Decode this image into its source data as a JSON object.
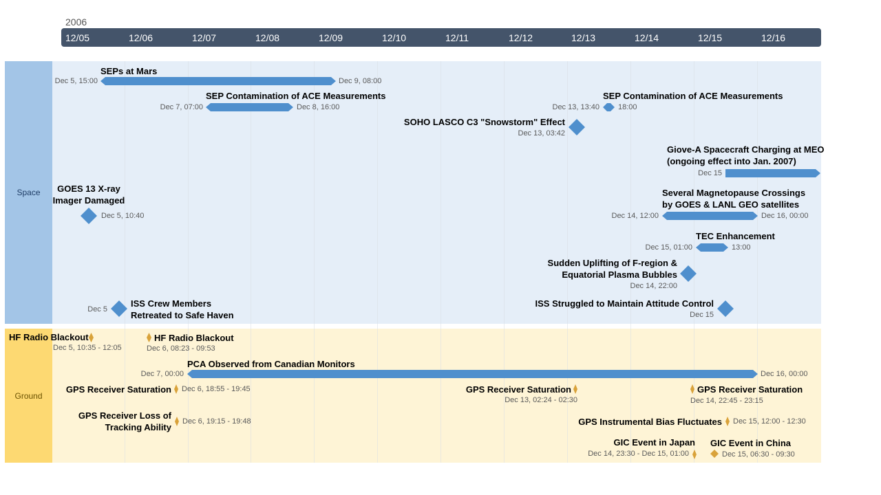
{
  "year": "2006",
  "ticks": [
    "12/05",
    "12/06",
    "12/07",
    "12/08",
    "12/09",
    "12/10",
    "12/11",
    "12/12",
    "12/13",
    "12/14",
    "12/15",
    "12/16"
  ],
  "bands": {
    "space": "Space",
    "ground": "Ground"
  },
  "colors": {
    "axis": "#44546a",
    "space_label": "#a3c5e7",
    "space_bg": "#e5eef8",
    "ground_label": "#fdd972",
    "ground_bg": "#fef4d6",
    "bar": "#4f8fcd",
    "diamond_space": "#4f8fcd",
    "diamond_ground": "#d9a23a"
  },
  "space": {
    "sep_mars": {
      "title": "SEPs at Mars",
      "start": "Dec 5, 15:00",
      "end": "Dec 9, 08:00"
    },
    "sep_ace_1": {
      "title": "SEP Contamination of ACE Measurements",
      "start": "Dec 7, 07:00",
      "end": "Dec 8, 16:00"
    },
    "sep_ace_2": {
      "title": "SEP Contamination of ACE Measurements",
      "start": "Dec 13, 13:40",
      "end": "18:00"
    },
    "soho": {
      "title": "SOHO LASCO C3 \"Snowstorm\" Effect",
      "date": "Dec 13, 03:42"
    },
    "giove": {
      "title1": "Giove-A Spacecraft Charging at MEO",
      "title2": "(ongoing effect into Jan. 2007)",
      "start": "Dec 15"
    },
    "goes13": {
      "title1": "GOES 13 X-ray",
      "title2": "Imager Damaged",
      "date": "Dec 5, 10:40"
    },
    "magnetopause": {
      "title1": "Several Magnetopause Crossings",
      "title2": "by GOES & LANL GEO satellites",
      "start": "Dec 14, 12:00",
      "end": "Dec 16, 00:00"
    },
    "tec": {
      "title": "TEC Enhancement",
      "start": "Dec 15, 01:00",
      "end": "13:00"
    },
    "f_region": {
      "title1": "Sudden Uplifting of F-region &",
      "title2": "Equatorial Plasma Bubbles",
      "date": "Dec 14, 22:00"
    },
    "iss_crew": {
      "title1": "ISS Crew Members",
      "title2": "Retreated to Safe Haven",
      "date": "Dec 5"
    },
    "iss_attitude": {
      "title": "ISS Struggled to Maintain Attitude Control",
      "date": "Dec 15"
    }
  },
  "ground": {
    "hf1": {
      "title": "HF Radio Blackout",
      "date": "Dec 5, 10:35 - 12:05"
    },
    "hf2": {
      "title": "HF Radio Blackout",
      "date": "Dec 6, 08:23 - 09:53"
    },
    "pca": {
      "title": "PCA Observed from Canadian Monitors",
      "start": "Dec 7, 00:00",
      "end": "Dec 16, 00:00"
    },
    "gps_sat_1": {
      "title": "GPS Receiver Saturation",
      "date": "Dec 6, 18:55 - 19:45"
    },
    "gps_sat_2": {
      "title": "GPS Receiver Saturation",
      "date": "Dec 13, 02:24 - 02:30"
    },
    "gps_sat_3": {
      "title": "GPS Receiver Saturation",
      "date": "Dec 14, 22:45 - 23:15"
    },
    "gps_loss": {
      "title1": "GPS Receiver Loss of",
      "title2": "Tracking Ability",
      "date": "Dec 6, 19:15 - 19:48"
    },
    "gps_bias": {
      "title": "GPS Instrumental Bias Fluctuates",
      "date": "Dec 15, 12:00 - 12:30"
    },
    "gic_japan": {
      "title": "GIC Event in Japan",
      "date": "Dec 14, 23:30 - Dec 15, 01:00"
    },
    "gic_china": {
      "title": "GIC Event in China",
      "date": "Dec 15, 06:30 - 09:30"
    }
  }
}
